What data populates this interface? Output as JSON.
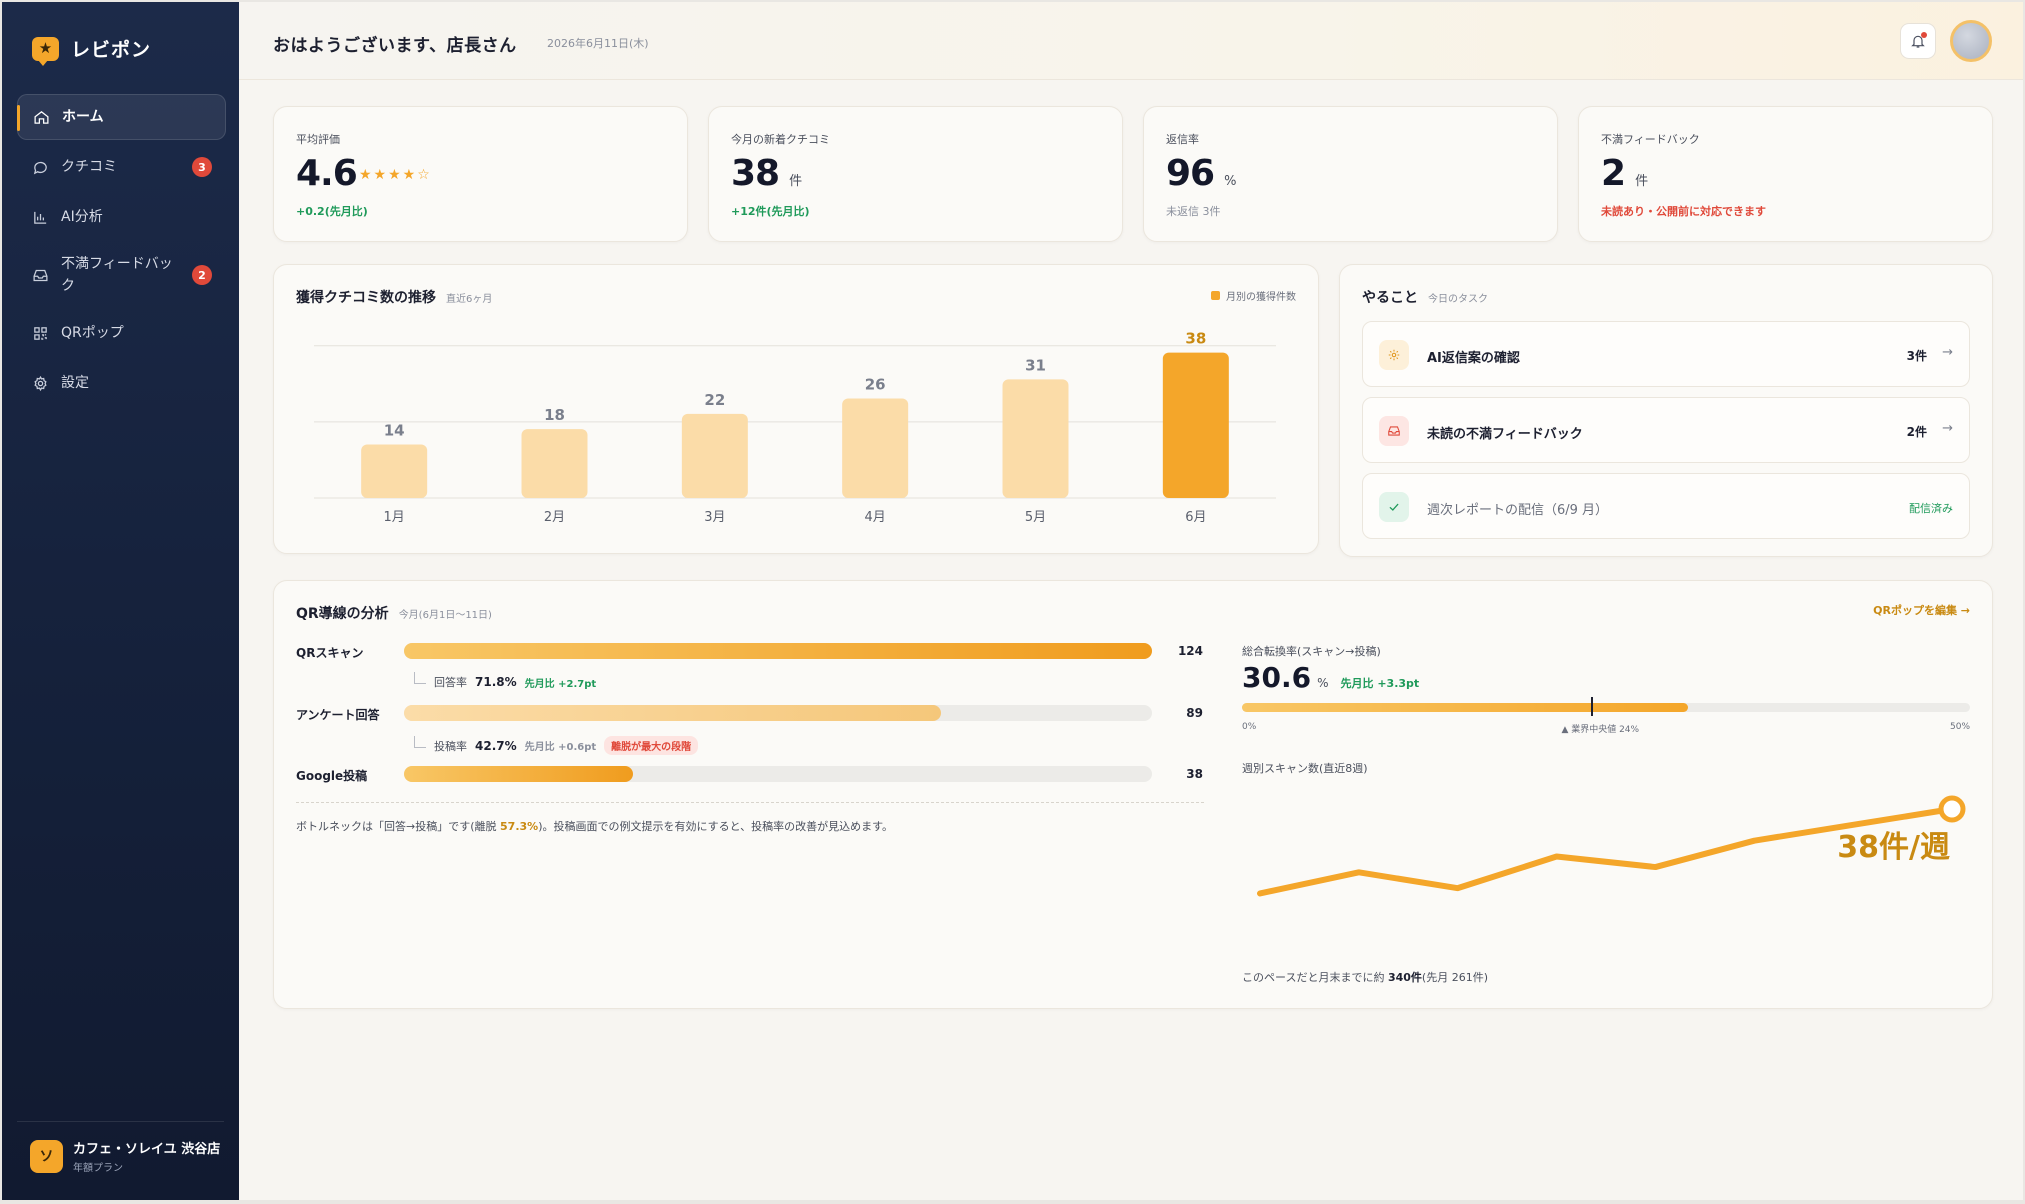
{
  "app": {
    "name": "レビポン",
    "logo_icon": "star-chat-icon"
  },
  "sidebar": {
    "items": [
      {
        "label": "ホーム",
        "icon": "home-icon",
        "active": true
      },
      {
        "label": "クチコミ",
        "icon": "chat-bubble-icon",
        "badge": "3"
      },
      {
        "label": "AI分析",
        "icon": "bar-chart-icon"
      },
      {
        "label": "不満フィードバック",
        "icon": "inbox-icon",
        "badge": "2"
      },
      {
        "label": "QRポップ",
        "icon": "qr-grid-icon"
      },
      {
        "label": "設定",
        "icon": "gear-icon"
      }
    ],
    "store": {
      "avatar": "ソ",
      "name": "カフェ・ソレイユ 渋谷店",
      "plan": "年額プラン"
    }
  },
  "header": {
    "greeting": "おはようございます、店長さん",
    "date": "2026年6月11日(木)"
  },
  "kpis": [
    {
      "label": "平均評価",
      "value": "4.6",
      "stars": "★★★★",
      "star_empty": "☆",
      "sub": "+0.2(先月比)",
      "sub_color": "green"
    },
    {
      "label": "今月の新着クチコミ",
      "value": "38",
      "unit": "件",
      "sub": "+12件(先月比)",
      "sub_color": "green"
    },
    {
      "label": "返信率",
      "value": "96",
      "unit": "%",
      "sub": "未返信 3件",
      "sub_color": "grey"
    },
    {
      "label": "不満フィードバック",
      "value": "2",
      "unit": "件",
      "sub": "未読あり・公開前に対応できます",
      "sub_color": "red"
    }
  ],
  "trend": {
    "title": "獲得クチコミ数の推移",
    "subtitle": "直近6ヶ月",
    "legend": "月別の獲得件数"
  },
  "chart_data": [
    {
      "type": "bar",
      "title": "獲得クチコミ数の推移",
      "categories": [
        "1月",
        "2月",
        "3月",
        "4月",
        "5月",
        "6月"
      ],
      "series": [
        {
          "name": "月別の獲得件数",
          "values": [
            14,
            18,
            22,
            26,
            31,
            38
          ]
        }
      ],
      "ylim": [
        0,
        40
      ],
      "grid": true,
      "colors": {
        "past": "#fbdca8",
        "current": "#f4a62a",
        "current_label": "#c98a12",
        "label": "#7a7f8c"
      }
    },
    {
      "type": "line",
      "title": "週別スキャン数(直近8週)",
      "x": [
        1,
        2,
        3,
        4,
        5,
        6,
        7,
        8
      ],
      "series": [
        {
          "values": [
            22,
            26,
            23,
            29,
            27,
            32,
            35,
            38
          ]
        }
      ],
      "end_label": "38件/週",
      "colors": {
        "line": "#f4a62a"
      }
    }
  ],
  "todo": {
    "title": "やること",
    "subtitle": "今日のタスク",
    "items": [
      {
        "label": "AI返信案の確認",
        "count": "3件",
        "icon": "sparkle-icon",
        "tone": "amber"
      },
      {
        "label": "未読の不満フィードバック",
        "count": "2件",
        "icon": "inbox-icon",
        "tone": "red"
      },
      {
        "label": "週次レポートの配信（6/9 月）",
        "status": "配信済み",
        "icon": "check-icon",
        "tone": "green"
      }
    ]
  },
  "qr": {
    "title": "QR導線の分析",
    "subtitle": "今月(6月1日〜11日)",
    "edit_label": "QRポップを編集 →",
    "funnel": [
      {
        "label": "QRスキャン",
        "value": "124",
        "ratio": 1.0
      },
      {
        "label": "アンケート回答",
        "value": "89",
        "ratio": 0.718
      },
      {
        "label": "Google投稿",
        "value": "38",
        "ratio": 0.306
      }
    ],
    "steps": [
      {
        "name": "回答率",
        "rate": "71.8%",
        "delta": "先月比 +2.7pt"
      },
      {
        "name": "投稿率",
        "rate": "42.7%",
        "delta": "先月比 +0.6pt",
        "warning": "離脱が最大の段階"
      }
    ],
    "note_before": "ボトルネックは「回答→投稿」です(離脱 ",
    "note_highlight": "57.3%",
    "note_after": ")。投稿画面での例文提示を有効にすると、投稿率の改善が見込めます。",
    "conversion": {
      "label": "総合転換率(スキャン→投稿)",
      "value": "30.6",
      "unit": "%",
      "delta": "先月比 +3.3pt",
      "fill_ratio": 0.612,
      "marker_ratio": 0.48,
      "tick_min": "0%",
      "tick_marker": "▲ 業界中央値 24%",
      "tick_max": "50%"
    },
    "weekly_label": "週別スキャン数(直近8週)",
    "pace_before": "このペースだと月末までに約 ",
    "pace_value": "340件",
    "pace_after": "(先月 261件)"
  }
}
